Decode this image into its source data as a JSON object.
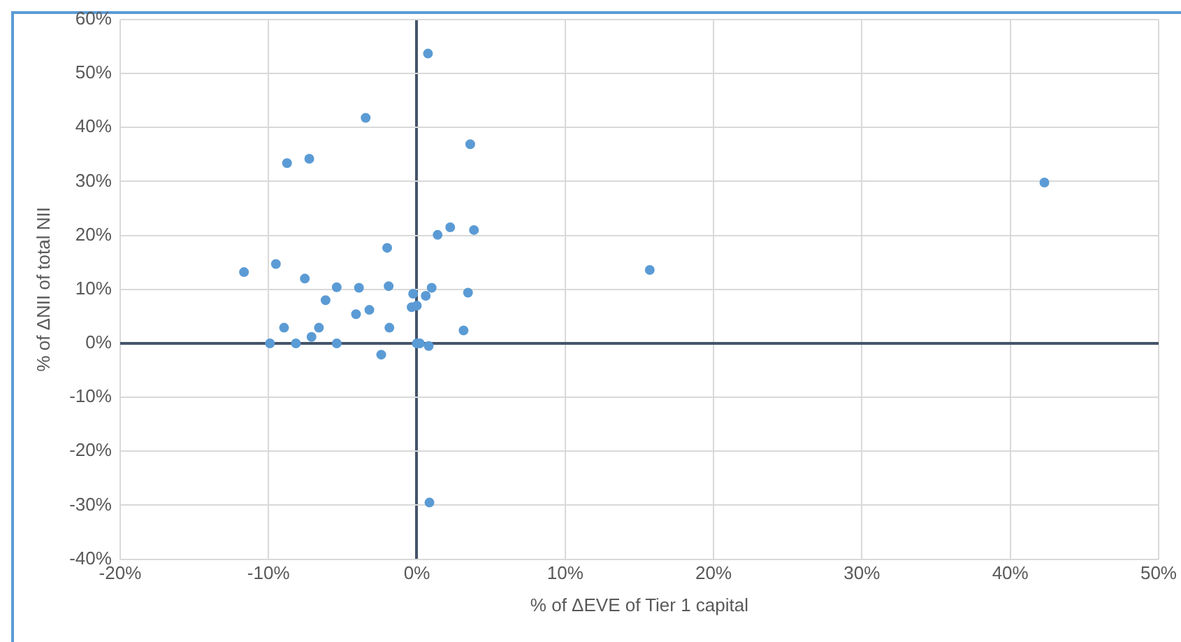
{
  "chart_data": {
    "type": "scatter",
    "xlabel": "% of ΔEVE of Tier 1 capital",
    "ylabel": "% of ΔNII of total NII",
    "x": [
      0.75,
      -3.45,
      3.6,
      -8.75,
      -7.25,
      42.3,
      2.25,
      3.85,
      1.4,
      -2.0,
      -11.65,
      -9.5,
      15.7,
      -7.55,
      -5.4,
      -3.9,
      -1.9,
      -0.25,
      1.0,
      0.6,
      3.45,
      -6.15,
      -4.1,
      -3.2,
      -0.35,
      0,
      -8.95,
      -6.6,
      -1.85,
      3.15,
      -7.1,
      -9.9,
      -8.15,
      -5.4,
      0,
      0.2,
      0.8,
      -2.4,
      0.85
    ],
    "values": [
      53.7,
      41.8,
      36.9,
      33.4,
      34.2,
      29.8,
      21.5,
      21.0,
      20.1,
      17.7,
      13.2,
      14.7,
      13.6,
      12.0,
      10.4,
      10.3,
      10.6,
      9.2,
      10.3,
      8.8,
      9.4,
      8.0,
      5.4,
      6.2,
      6.7,
      7.0,
      2.9,
      2.9,
      2.9,
      2.4,
      1.2,
      0,
      0,
      0,
      0,
      0,
      -0.5,
      -2.1,
      -29.5
    ],
    "color": "#5b9bd5",
    "marker": "circle",
    "grid": true,
    "legend": false,
    "xlim": [
      -20,
      50
    ],
    "xticks": [
      {
        "value": -20,
        "label": "-20%"
      },
      {
        "value": -10,
        "label": "-10%"
      },
      {
        "value": 0,
        "label": "0%"
      },
      {
        "value": 10,
        "label": "10%"
      },
      {
        "value": 20,
        "label": "20%"
      },
      {
        "value": 30,
        "label": "30%"
      },
      {
        "value": 40,
        "label": "40%"
      },
      {
        "value": 50,
        "label": "50%"
      }
    ],
    "ylim": [
      -40,
      60
    ],
    "yticks": [
      {
        "value": -40,
        "label": "-40%"
      },
      {
        "value": -30,
        "label": "-30%"
      },
      {
        "value": -20,
        "label": "-20%"
      },
      {
        "value": -10,
        "label": "-10%"
      },
      {
        "value": 0,
        "label": "0%"
      },
      {
        "value": 10,
        "label": "10%"
      },
      {
        "value": 20,
        "label": "20%"
      },
      {
        "value": 30,
        "label": "30%"
      },
      {
        "value": 40,
        "label": "40%"
      },
      {
        "value": 50,
        "label": "50%"
      },
      {
        "value": 60,
        "label": "60%"
      }
    ]
  }
}
